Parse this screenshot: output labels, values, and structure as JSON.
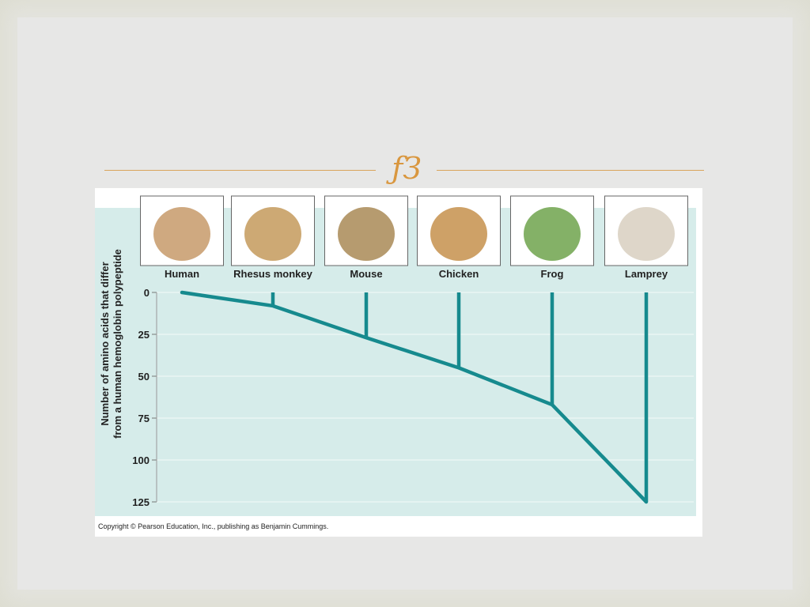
{
  "slide": {
    "ornament_glyph": "ƒЗ"
  },
  "chart_data": {
    "type": "line",
    "title": "",
    "taxa": [
      "Human",
      "Rhesus monkey",
      "Mouse",
      "Chicken",
      "Frog",
      "Lamprey"
    ],
    "differences": [
      0,
      8,
      27,
      45,
      67,
      125
    ],
    "xlabel": "",
    "ylabel_line1": "Number of amino acids that differ",
    "ylabel_line2": "from a human hemoglobin polypeptide",
    "yticks": [
      "0",
      "25",
      "50",
      "75",
      "100",
      "125"
    ],
    "ylim": [
      0,
      125
    ],
    "grid": true,
    "copyright": "Copyright © Pearson Education, Inc., publishing as Benjamin Cummings.",
    "colors": {
      "panel": "#d6ecea",
      "line": "#168a8e",
      "grid": "#eaf5f3"
    }
  }
}
